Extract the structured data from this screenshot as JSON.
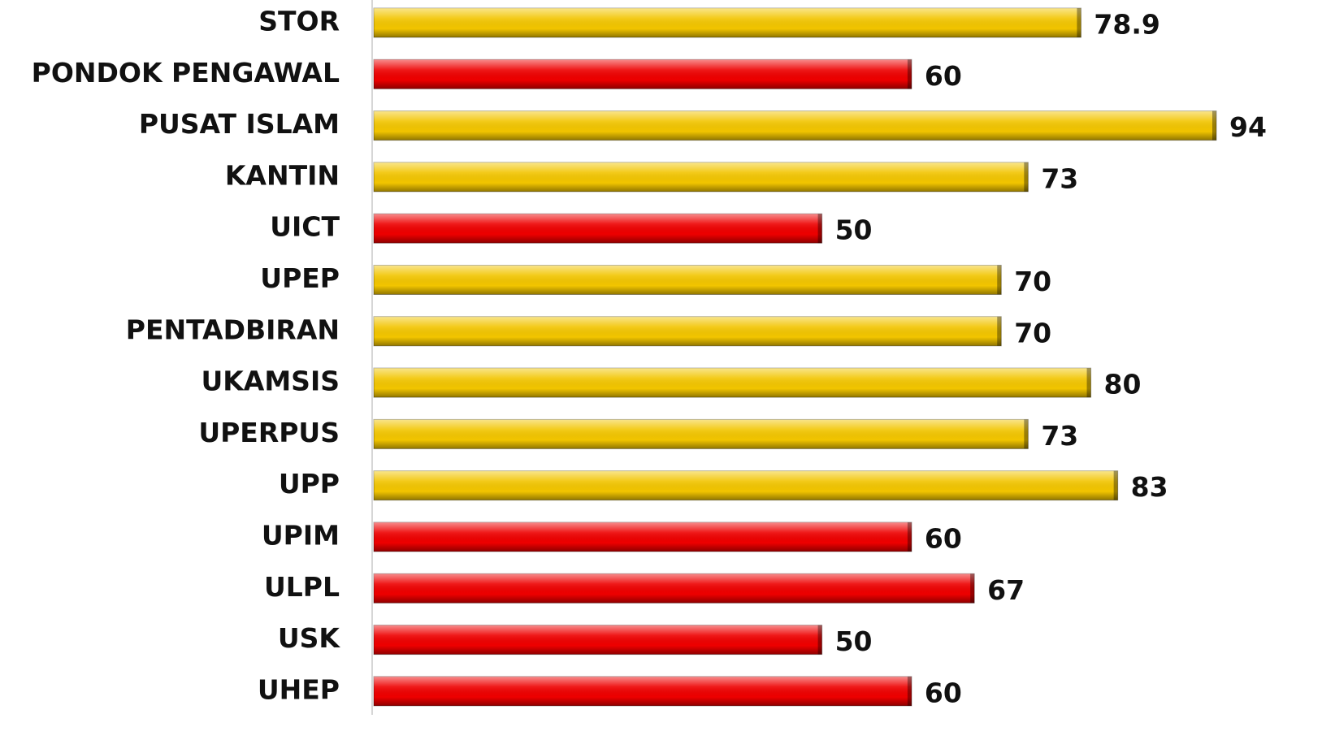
{
  "chart_data": {
    "type": "barh",
    "categories": [
      "STOR",
      "PONDOK PENGAWAL",
      "PUSAT ISLAM",
      "KANTIN",
      "UICT",
      "UPEP",
      "PENTADBIRAN",
      "UKAMSIS",
      "UPERPUS",
      "UPP",
      "UPIM",
      "ULPL",
      "USK",
      "UHEP"
    ],
    "values": [
      78.9,
      60,
      94,
      73,
      50,
      70,
      70,
      80,
      73,
      83,
      60,
      67,
      50,
      60
    ],
    "colors": [
      "#f2c500",
      "#ee0000",
      "#f2c500",
      "#f2c500",
      "#ee0000",
      "#f2c500",
      "#f2c500",
      "#f2c500",
      "#f2c500",
      "#f2c500",
      "#ee0000",
      "#ee0000",
      "#ee0000",
      "#ee0000"
    ]
  }
}
